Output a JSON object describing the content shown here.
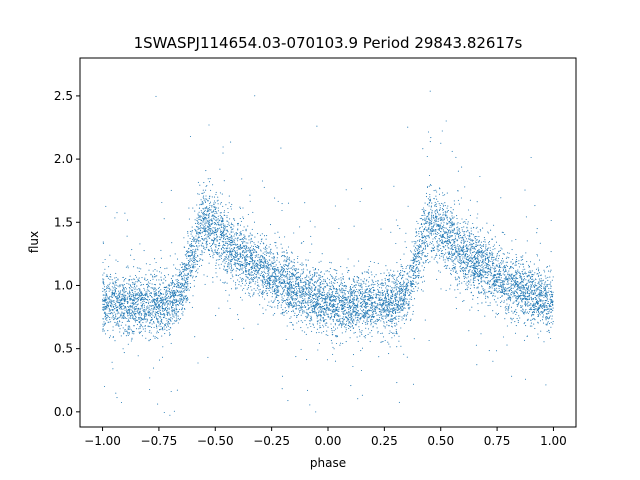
{
  "chart_data": {
    "type": "scatter",
    "title": "1SWASPJ114654.03-070103.9 Period 29843.82617s",
    "xlabel": "phase",
    "ylabel": "flux",
    "xlim": [
      -1.1,
      1.1
    ],
    "ylim": [
      -0.12,
      2.8
    ],
    "xticks": [
      -1.0,
      -0.75,
      -0.5,
      -0.25,
      0.0,
      0.25,
      0.5,
      0.75,
      1.0
    ],
    "xtick_labels": [
      "−1.00",
      "−0.75",
      "−0.50",
      "−0.25",
      "0.00",
      "0.25",
      "0.50",
      "0.75",
      "1.00"
    ],
    "yticks": [
      0.0,
      0.5,
      1.0,
      1.5,
      2.0,
      2.5
    ],
    "ytick_labels": [
      "0.0",
      "0.5",
      "1.0",
      "1.5",
      "2.0",
      "2.5"
    ],
    "grid": false,
    "legend": "none",
    "marker_color": "#1f77b4",
    "series": [
      {
        "x_range": [
          -1.0,
          1.0
        ],
        "period_in_phase": 1.0,
        "trend": [
          {
            "x": -1.0,
            "y": 0.86
          },
          {
            "x": -0.9,
            "y": 0.85
          },
          {
            "x": -0.8,
            "y": 0.84
          },
          {
            "x": -0.7,
            "y": 0.86
          },
          {
            "x": -0.65,
            "y": 0.95
          },
          {
            "x": -0.6,
            "y": 1.25
          },
          {
            "x": -0.55,
            "y": 1.5
          },
          {
            "x": -0.5,
            "y": 1.45
          },
          {
            "x": -0.45,
            "y": 1.35
          },
          {
            "x": -0.4,
            "y": 1.25
          },
          {
            "x": -0.3,
            "y": 1.13
          },
          {
            "x": -0.2,
            "y": 1.02
          },
          {
            "x": -0.1,
            "y": 0.93
          },
          {
            "x": 0.0,
            "y": 0.86
          }
        ]
      }
    ]
  }
}
